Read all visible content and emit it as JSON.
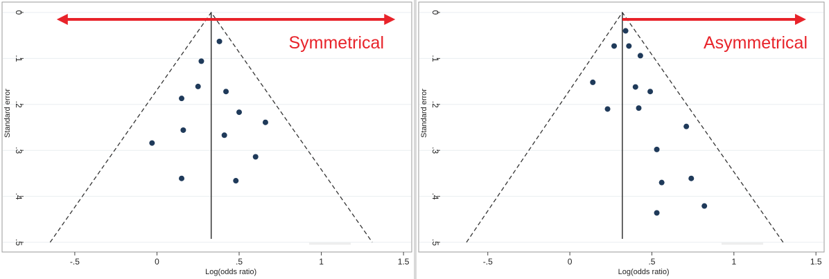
{
  "chart_data": [
    {
      "type": "scatter",
      "title": "",
      "xlabel": "Log(odds ratio)",
      "ylabel": "Standard error",
      "xlim": [
        -0.82,
        1.55
      ],
      "ylim": [
        0,
        0.5
      ],
      "y_inverted": true,
      "xticks": [
        -0.5,
        0,
        0.5,
        1,
        1.5
      ],
      "xtick_labels": [
        "-.5",
        "0",
        ".5",
        "1",
        "1.5"
      ],
      "yticks": [
        0,
        0.1,
        0.2,
        0.3,
        0.4,
        0.5
      ],
      "ytick_labels": [
        "0",
        ".1",
        ".2",
        ".3",
        ".4",
        ".5"
      ],
      "grid": true,
      "pooled_estimate": 0.33,
      "funnel": {
        "apex": [
          0.33,
          0
        ],
        "left_base": [
          -0.65,
          0.5
        ],
        "right_base": [
          1.31,
          0.5
        ]
      },
      "annotation": {
        "text": "Symmetrical",
        "arrow": "double",
        "arrow_from": -0.61,
        "arrow_to": 1.45,
        "color": "#e8232a"
      },
      "points": [
        {
          "x": 0.38,
          "y": 0.063
        },
        {
          "x": 0.27,
          "y": 0.106
        },
        {
          "x": 0.25,
          "y": 0.161
        },
        {
          "x": 0.42,
          "y": 0.172
        },
        {
          "x": 0.15,
          "y": 0.187
        },
        {
          "x": 0.5,
          "y": 0.217
        },
        {
          "x": 0.66,
          "y": 0.239
        },
        {
          "x": 0.16,
          "y": 0.256
        },
        {
          "x": 0.41,
          "y": 0.267
        },
        {
          "x": -0.03,
          "y": 0.284
        },
        {
          "x": 0.6,
          "y": 0.314
        },
        {
          "x": 0.15,
          "y": 0.361
        },
        {
          "x": 0.48,
          "y": 0.366
        }
      ]
    },
    {
      "type": "scatter",
      "title": "",
      "xlabel": "Log(odds ratio)",
      "ylabel": "Standard error",
      "xlim": [
        -0.82,
        1.55
      ],
      "ylim": [
        0,
        0.5
      ],
      "y_inverted": true,
      "xticks": [
        -0.5,
        0,
        0.5,
        1,
        1.5
      ],
      "xtick_labels": [
        "-.5",
        "0",
        ".5",
        "1",
        "1.5"
      ],
      "yticks": [
        0,
        0.1,
        0.2,
        0.3,
        0.4,
        0.5
      ],
      "ytick_labels": [
        "0",
        ".1",
        ".2",
        ".3",
        ".4",
        ".5"
      ],
      "grid": true,
      "pooled_estimate": 0.32,
      "funnel": {
        "apex": [
          0.32,
          0
        ],
        "left_base": [
          -0.63,
          0.5
        ],
        "right_base": [
          1.3,
          0.5
        ]
      },
      "annotation": {
        "text": "Asymmetrical",
        "arrow": "single",
        "arrow_from": 0.32,
        "arrow_to": 1.44,
        "color": "#e8232a"
      },
      "points": [
        {
          "x": 0.34,
          "y": 0.04
        },
        {
          "x": 0.27,
          "y": 0.073
        },
        {
          "x": 0.36,
          "y": 0.073
        },
        {
          "x": 0.43,
          "y": 0.094
        },
        {
          "x": 0.14,
          "y": 0.152
        },
        {
          "x": 0.4,
          "y": 0.162
        },
        {
          "x": 0.49,
          "y": 0.172
        },
        {
          "x": 0.23,
          "y": 0.21
        },
        {
          "x": 0.42,
          "y": 0.208
        },
        {
          "x": 0.71,
          "y": 0.248
        },
        {
          "x": 0.53,
          "y": 0.298
        },
        {
          "x": 0.74,
          "y": 0.361
        },
        {
          "x": 0.56,
          "y": 0.37
        },
        {
          "x": 0.82,
          "y": 0.421
        },
        {
          "x": 0.53,
          "y": 0.436
        }
      ]
    }
  ]
}
